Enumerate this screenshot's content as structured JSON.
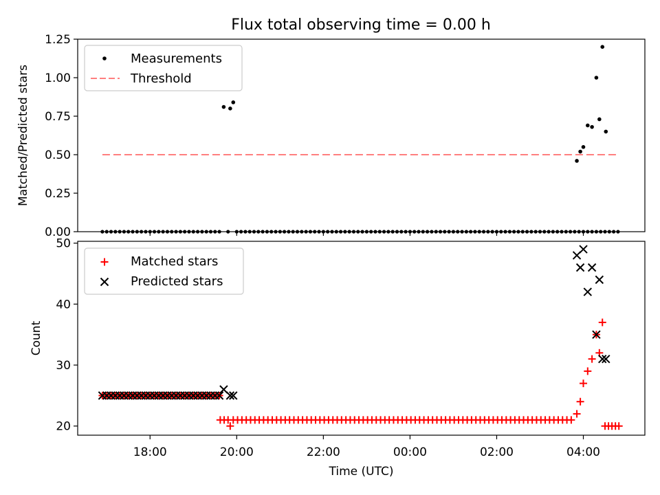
{
  "chart_data": [
    {
      "type": "scatter",
      "title": "Flux total observing time = 0.00 h",
      "xlabel": "",
      "ylabel": "Matched/Predicted stars",
      "xlim_hours": [
        16.33,
        29.42
      ],
      "ylim": [
        0,
        1.25
      ],
      "yticks": [
        0,
        0.25,
        0.5,
        0.75,
        1.0,
        1.25
      ],
      "ytick_labels": [
        "0.00",
        "0.25",
        "0.50",
        "0.75",
        "1.00",
        "1.25"
      ],
      "legend_position": "top-left",
      "legend": [
        {
          "name": "Measurements",
          "marker": "dot",
          "color": "#000000"
        },
        {
          "name": "Threshold",
          "marker": "dashed-line",
          "color": "#ff7f7f"
        }
      ],
      "threshold": {
        "value": 0.5,
        "x_range_hours": [
          16.9,
          28.8
        ]
      },
      "zero_measurements": {
        "x_start": 16.9,
        "x_end": 28.8,
        "step": 0.1,
        "gaps": [
          [
            19.65,
            19.8
          ],
          [
            19.86,
            19.99
          ]
        ]
      },
      "measurements": [
        {
          "x": 19.7,
          "y": 0.81
        },
        {
          "x": 19.85,
          "y": 0.8
        },
        {
          "x": 19.92,
          "y": 0.84
        },
        {
          "x": 27.85,
          "y": 0.46
        },
        {
          "x": 27.93,
          "y": 0.52
        },
        {
          "x": 28.0,
          "y": 0.55
        },
        {
          "x": 28.1,
          "y": 0.69
        },
        {
          "x": 28.2,
          "y": 0.68
        },
        {
          "x": 28.3,
          "y": 1.0
        },
        {
          "x": 28.37,
          "y": 0.73
        },
        {
          "x": 28.44,
          "y": 1.2
        },
        {
          "x": 28.52,
          "y": 0.65
        }
      ],
      "xticks_hours": [
        18,
        20,
        22,
        24,
        26,
        28
      ]
    },
    {
      "type": "scatter",
      "title": "",
      "xlabel": "Time (UTC)",
      "ylabel": "Count",
      "xlim_hours": [
        16.33,
        29.42
      ],
      "ylim": [
        18.5,
        50.3
      ],
      "yticks": [
        20,
        30,
        40,
        50
      ],
      "ytick_labels": [
        "20",
        "30",
        "40",
        "50"
      ],
      "xticks_hours": [
        18,
        20,
        22,
        24,
        26,
        28
      ],
      "xtick_labels": [
        "18:00",
        "20:00",
        "22:00",
        "00:00",
        "02:00",
        "04:00"
      ],
      "legend_position": "top-left",
      "legend": [
        {
          "name": "Matched stars",
          "marker": "plus",
          "color": "#ff0000"
        },
        {
          "name": "Predicted stars",
          "marker": "x",
          "color": "#000000"
        }
      ],
      "matched_segments": [
        {
          "x_start": 16.9,
          "x_end": 19.6,
          "step": 0.1,
          "value": 25
        },
        {
          "x_start": 19.62,
          "x_end": 19.8,
          "step": 0.09,
          "value": 21
        },
        {
          "x_start": 19.92,
          "x_end": 27.8,
          "step": 0.1,
          "value": 21
        }
      ],
      "matched_points": [
        {
          "x": 19.85,
          "y": 20
        },
        {
          "x": 27.85,
          "y": 22
        },
        {
          "x": 27.93,
          "y": 24
        },
        {
          "x": 28.0,
          "y": 27
        },
        {
          "x": 28.1,
          "y": 29
        },
        {
          "x": 28.2,
          "y": 31
        },
        {
          "x": 28.3,
          "y": 35
        },
        {
          "x": 28.37,
          "y": 32
        },
        {
          "x": 28.44,
          "y": 37
        },
        {
          "x": 28.5,
          "y": 20
        },
        {
          "x": 28.58,
          "y": 20
        },
        {
          "x": 28.66,
          "y": 20
        },
        {
          "x": 28.74,
          "y": 20
        },
        {
          "x": 28.82,
          "y": 20
        }
      ],
      "predicted_segment": {
        "x_start": 16.9,
        "x_end": 19.6,
        "step": 0.1,
        "value": 25
      },
      "predicted_points": [
        {
          "x": 19.7,
          "y": 26
        },
        {
          "x": 19.85,
          "y": 25
        },
        {
          "x": 19.92,
          "y": 25
        },
        {
          "x": 27.85,
          "y": 48
        },
        {
          "x": 27.93,
          "y": 46
        },
        {
          "x": 28.0,
          "y": 49
        },
        {
          "x": 28.1,
          "y": 42
        },
        {
          "x": 28.2,
          "y": 46
        },
        {
          "x": 28.3,
          "y": 35
        },
        {
          "x": 28.37,
          "y": 44
        },
        {
          "x": 28.44,
          "y": 31
        },
        {
          "x": 28.52,
          "y": 31
        }
      ]
    }
  ]
}
